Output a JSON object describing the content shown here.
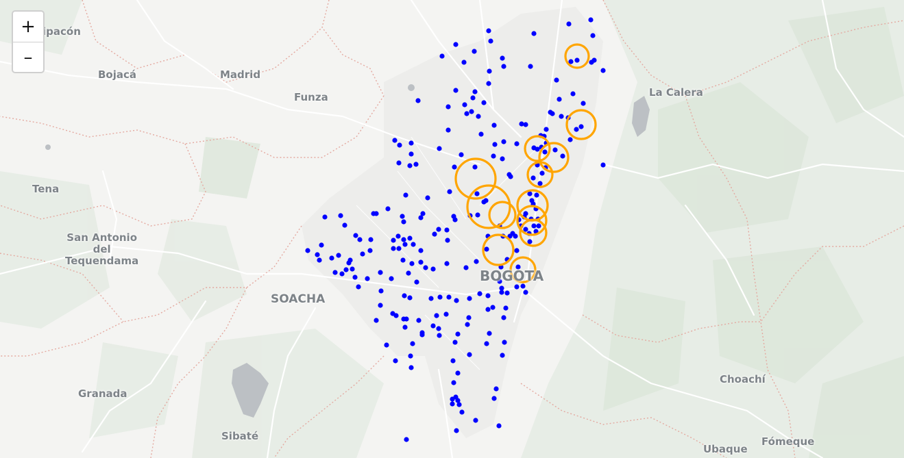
{
  "map": {
    "labels": {
      "zipacon": "ipacón",
      "bojaca": "Bojacá",
      "madrid": "Madrid",
      "funza": "Funza",
      "la_calera": "La Calera",
      "tena": "Tena",
      "san_antonio": "San Antonio\ndel\nTequendama",
      "soacha": "SOACHA",
      "bogota": "BOGOTA",
      "granada": "Granada",
      "sibate": "Sibaté",
      "choachi": "Choachí",
      "ubaque": "Ubaque",
      "fomeque": "Fómeque"
    },
    "zoom": {
      "in_label": "+",
      "out_label": "–"
    },
    "colors": {
      "point": "#0000ff",
      "circle": "#ffa500",
      "water": "#bcc0c4",
      "road": "#ffffff",
      "boundary": "#e4a9a0"
    }
  }
}
